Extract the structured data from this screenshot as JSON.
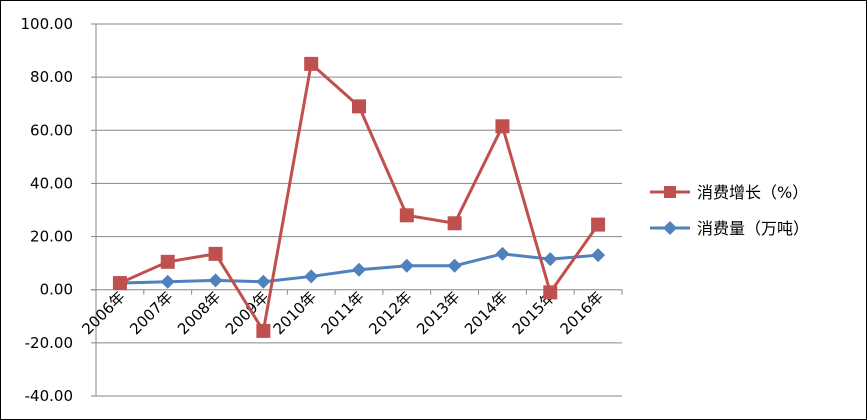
{
  "chart_data": {
    "type": "line",
    "categories": [
      "2006年",
      "2007年",
      "2008年",
      "2009年",
      "2010年",
      "2011年",
      "2012年",
      "2013年",
      "2014年",
      "2015年",
      "2016年"
    ],
    "series": [
      {
        "name": "消费增长（%）",
        "color": "#c0504d",
        "marker": "square",
        "values": [
          2.5,
          10.5,
          13.5,
          -15.5,
          85.0,
          69.0,
          28.0,
          25.0,
          61.5,
          -1.0,
          24.5
        ]
      },
      {
        "name": "消费量（万吨）",
        "color": "#4f81bd",
        "marker": "diamond",
        "values": [
          2.5,
          3.0,
          3.5,
          3.0,
          5.0,
          7.5,
          9.0,
          9.0,
          13.5,
          11.5,
          13.0
        ]
      }
    ],
    "ylim": [
      -40,
      100
    ],
    "yticks": [
      "100.00",
      "80.00",
      "60.00",
      "40.00",
      "20.00",
      "0.00",
      "-20.00",
      "-40.00"
    ],
    "grid": true,
    "legend_position": "right"
  }
}
